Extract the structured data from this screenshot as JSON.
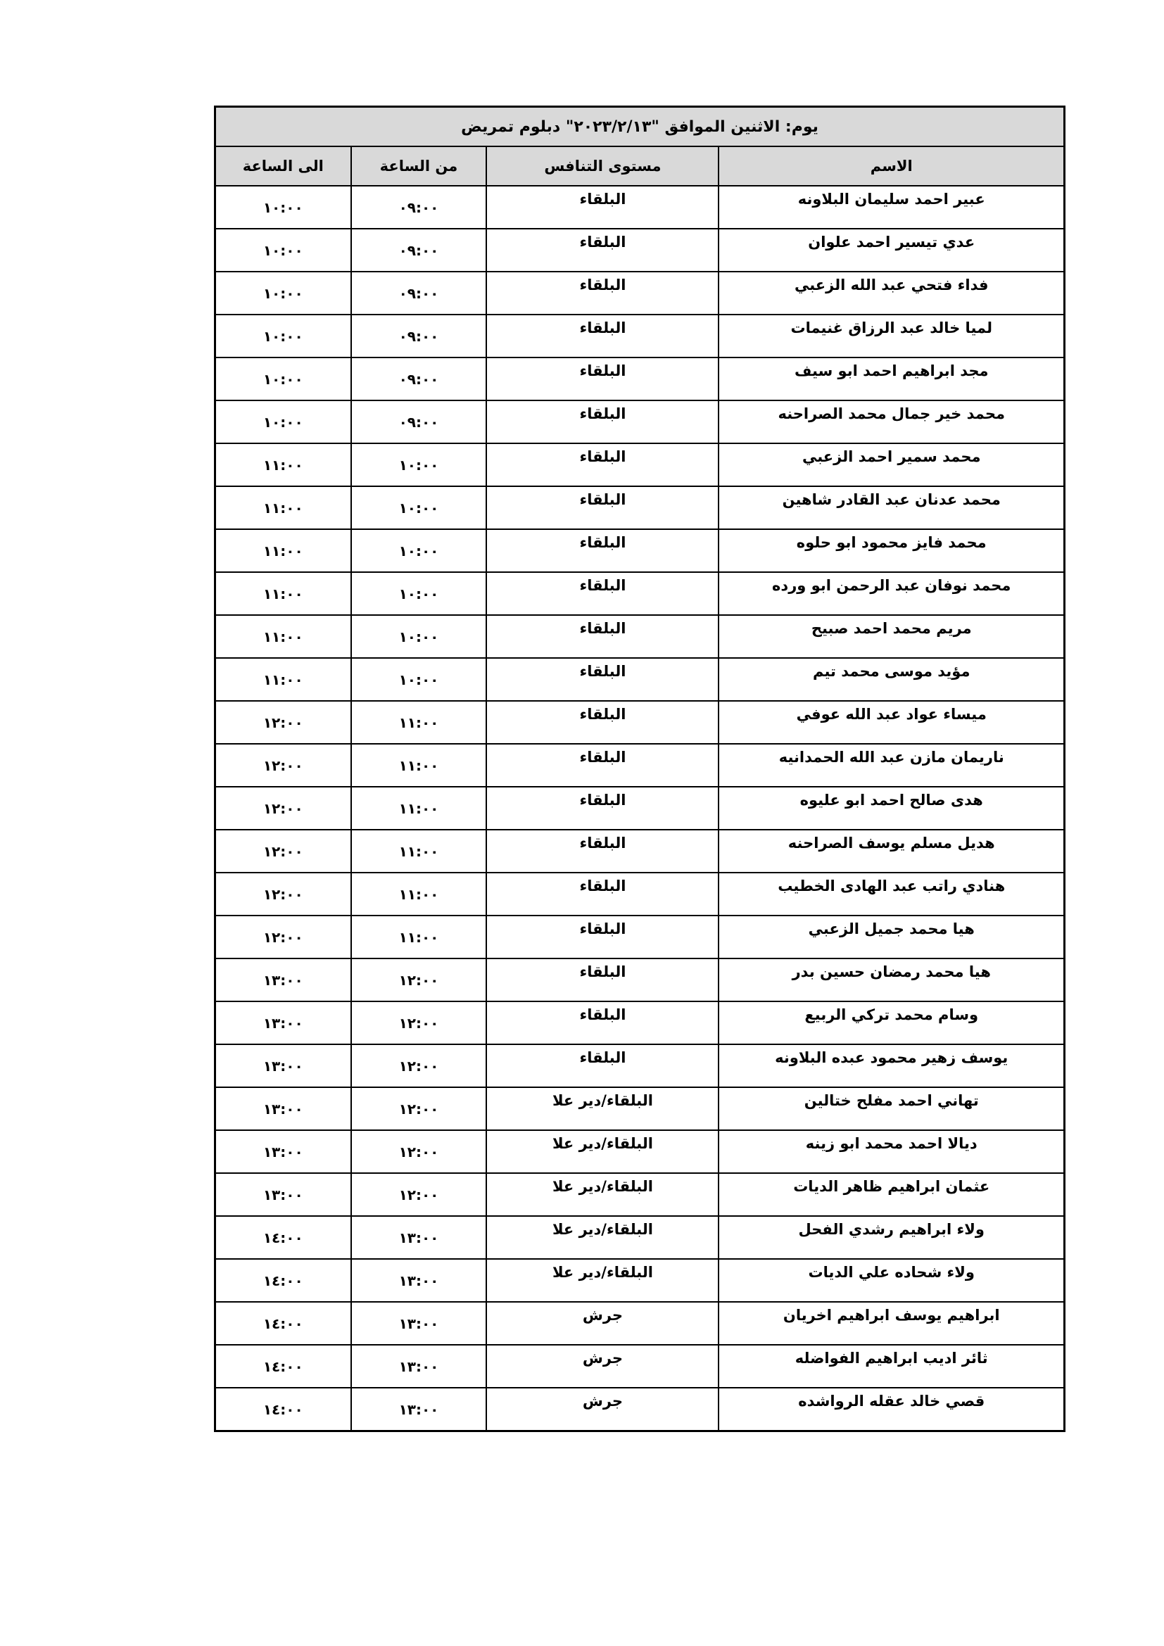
{
  "title": "يوم: الاثنين  الموافق \"٢٠٢٣/٢/١٣\" دبلوم تمريض",
  "headers": {
    "name": "الاسم",
    "level": "مستوى التنافس",
    "from": "من الساعة",
    "to": "الى الساعة"
  },
  "rows": [
    {
      "name": "عبير احمد سليمان البلاونه",
      "level": "البلقاء",
      "from": "٠٩:٠٠",
      "to": "١٠:٠٠"
    },
    {
      "name": "عدي تيسير احمد علوان",
      "level": "البلقاء",
      "from": "٠٩:٠٠",
      "to": "١٠:٠٠"
    },
    {
      "name": "فداء فتحي عبد الله الزعبي",
      "level": "البلقاء",
      "from": "٠٩:٠٠",
      "to": "١٠:٠٠"
    },
    {
      "name": "لميا خالد عبد الرزاق غنيمات",
      "level": "البلقاء",
      "from": "٠٩:٠٠",
      "to": "١٠:٠٠"
    },
    {
      "name": "مجد ابراهيم احمد ابو سيف",
      "level": "البلقاء",
      "from": "٠٩:٠٠",
      "to": "١٠:٠٠"
    },
    {
      "name": "محمد خير جمال محمد الصراحنه",
      "level": "البلقاء",
      "from": "٠٩:٠٠",
      "to": "١٠:٠٠"
    },
    {
      "name": "محمد سمير احمد الزعبي",
      "level": "البلقاء",
      "from": "١٠:٠٠",
      "to": "١١:٠٠"
    },
    {
      "name": "محمد عدنان عبد القادر شاهين",
      "level": "البلقاء",
      "from": "١٠:٠٠",
      "to": "١١:٠٠"
    },
    {
      "name": "محمد فايز محمود ابو حلوه",
      "level": "البلقاء",
      "from": "١٠:٠٠",
      "to": "١١:٠٠"
    },
    {
      "name": "محمد نوفان عبد الرحمن ابو ورده",
      "level": "البلقاء",
      "from": "١٠:٠٠",
      "to": "١١:٠٠"
    },
    {
      "name": "مريم محمد احمد صبيح",
      "level": "البلقاء",
      "from": "١٠:٠٠",
      "to": "١١:٠٠"
    },
    {
      "name": "مؤيد موسى محمد تيم",
      "level": "البلقاء",
      "from": "١٠:٠٠",
      "to": "١١:٠٠"
    },
    {
      "name": "ميساء عواد عبد الله عوفي",
      "level": "البلقاء",
      "from": "١١:٠٠",
      "to": "١٢:٠٠"
    },
    {
      "name": "ناريمان مازن عبد الله الحمدانيه",
      "level": "البلقاء",
      "from": "١١:٠٠",
      "to": "١٢:٠٠"
    },
    {
      "name": "هدى صالح احمد ابو عليوه",
      "level": "البلقاء",
      "from": "١١:٠٠",
      "to": "١٢:٠٠"
    },
    {
      "name": "هديل مسلم يوسف الصراحنه",
      "level": "البلقاء",
      "from": "١١:٠٠",
      "to": "١٢:٠٠"
    },
    {
      "name": "هنادي راتب عبد الهادى الخطيب",
      "level": "البلقاء",
      "from": "١١:٠٠",
      "to": "١٢:٠٠"
    },
    {
      "name": "هيا محمد جميل الزعبي",
      "level": "البلقاء",
      "from": "١١:٠٠",
      "to": "١٢:٠٠"
    },
    {
      "name": "هيا محمد رمضان حسين بدر",
      "level": "البلقاء",
      "from": "١٢:٠٠",
      "to": "١٣:٠٠"
    },
    {
      "name": "وسام محمد تركي الربيع",
      "level": "البلقاء",
      "from": "١٢:٠٠",
      "to": "١٣:٠٠"
    },
    {
      "name": "يوسف زهير محمود عبده البلاونه",
      "level": "البلقاء",
      "from": "١٢:٠٠",
      "to": "١٣:٠٠"
    },
    {
      "name": "تهاني احمد مفلح ختالين",
      "level": "البلقاء/دير علا",
      "from": "١٢:٠٠",
      "to": "١٣:٠٠"
    },
    {
      "name": "ديالا احمد محمد ابو زينه",
      "level": "البلقاء/دير علا",
      "from": "١٢:٠٠",
      "to": "١٣:٠٠"
    },
    {
      "name": "عثمان ابراهيم ظاهر الديات",
      "level": "البلقاء/دير علا",
      "from": "١٢:٠٠",
      "to": "١٣:٠٠"
    },
    {
      "name": "ولاء ابراهيم رشدي الفحل",
      "level": "البلقاء/دير علا",
      "from": "١٣:٠٠",
      "to": "١٤:٠٠"
    },
    {
      "name": "ولاء شحاده علي الديات",
      "level": "البلقاء/دير علا",
      "from": "١٣:٠٠",
      "to": "١٤:٠٠"
    },
    {
      "name": "ابراهيم يوسف ابراهيم اخريان",
      "level": "جرش",
      "from": "١٣:٠٠",
      "to": "١٤:٠٠"
    },
    {
      "name": "ثائر اديب ابراهيم الفواضله",
      "level": "جرش",
      "from": "١٣:٠٠",
      "to": "١٤:٠٠"
    },
    {
      "name": "قصي خالد عقله الرواشده",
      "level": "جرش",
      "from": "١٣:٠٠",
      "to": "١٤:٠٠"
    }
  ]
}
